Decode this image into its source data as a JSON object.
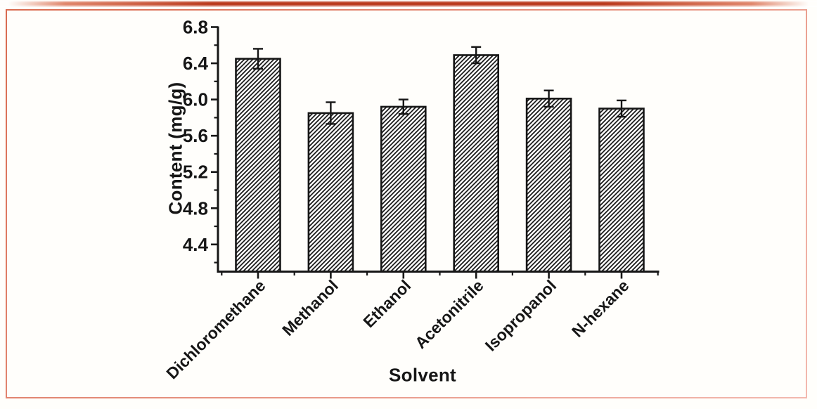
{
  "chart_data": {
    "type": "bar",
    "title": "",
    "xlabel": "Solvent",
    "ylabel": "Content (mg/g)",
    "categories": [
      "Dichloromethane",
      "Methanol",
      "Ethanol",
      "Acetonitrile",
      "Isopropanol",
      "N-hexane"
    ],
    "values": [
      6.45,
      5.85,
      5.92,
      6.49,
      6.01,
      5.9
    ],
    "errors": [
      0.11,
      0.12,
      0.08,
      0.09,
      0.09,
      0.09
    ],
    "ylim": [
      4.1,
      6.8
    ],
    "yticks": [
      4.4,
      4.8,
      5.2,
      5.6,
      6.0,
      6.4,
      6.8
    ],
    "y_minor_step": 0.2,
    "grid": false,
    "legend": "none",
    "bar_style": {
      "fill": "#ffffff",
      "hatch": "diagonal-forward-slash",
      "stroke": "#161616",
      "error_bar_color": "#161616"
    }
  },
  "decorations": {
    "background": "#fffefb",
    "accent_core": "#bb3a1d",
    "accent_soft": "#e0876c",
    "frame_border_start": "#d96b50",
    "frame_border_end": "#f3b9af",
    "axis_color": "#161616"
  }
}
